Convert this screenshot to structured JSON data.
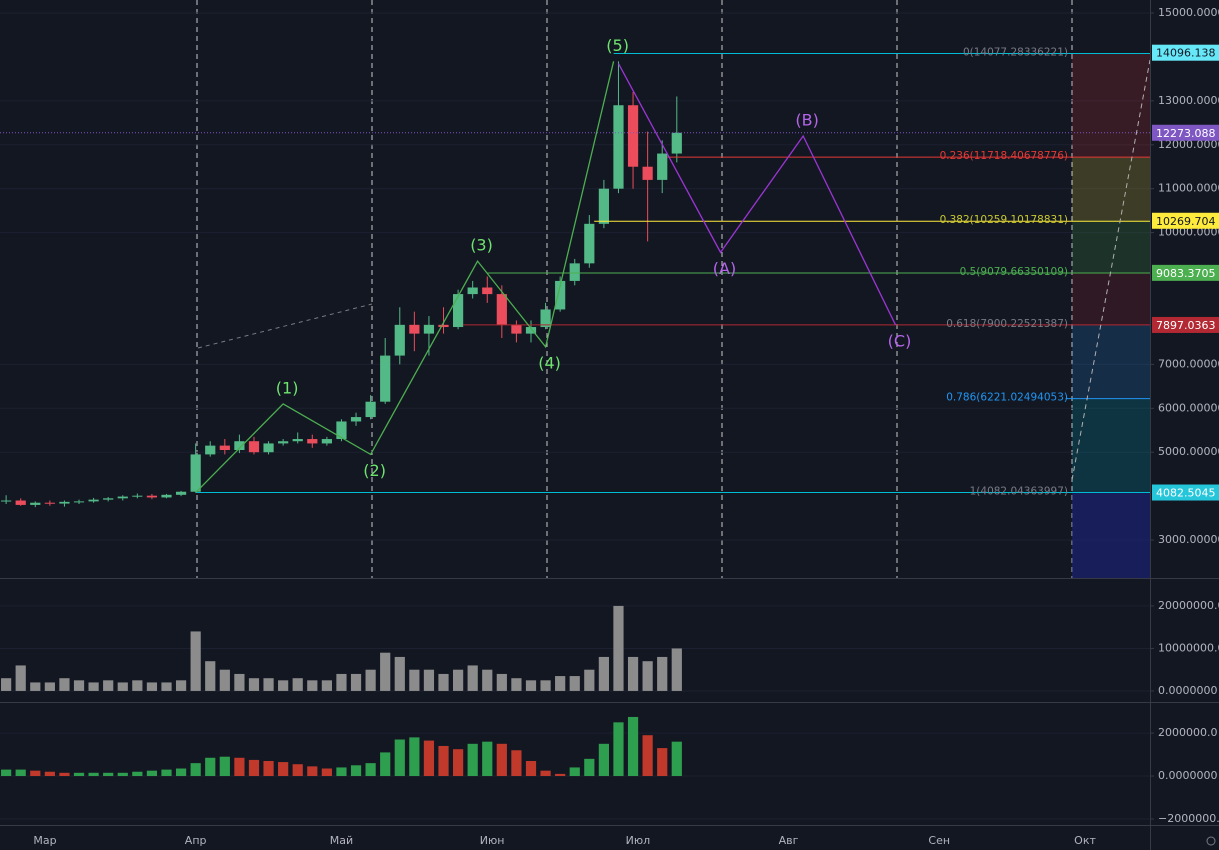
{
  "chart_data": [
    {
      "type": "candlestick",
      "x": [
        -8,
        -5,
        -2,
        1,
        4,
        7,
        10,
        13,
        16,
        19,
        22,
        25,
        28,
        31,
        34,
        37,
        40,
        43,
        46,
        49,
        52,
        55,
        58,
        61,
        64,
        67,
        70,
        73,
        76,
        79,
        82,
        85,
        88,
        91,
        94,
        97,
        100,
        103,
        106,
        109,
        112,
        115,
        118,
        121,
        124,
        127,
        130
      ],
      "open": [
        3880,
        3900,
        3800,
        3850,
        3830,
        3870,
        3880,
        3920,
        3950,
        3990,
        4010,
        3970,
        4030,
        4100,
        4950,
        5150,
        5050,
        5250,
        5000,
        5200,
        5250,
        5300,
        5200,
        5300,
        5700,
        5800,
        6150,
        7200,
        7900,
        7700,
        7900,
        7850,
        8600,
        8750,
        8600,
        7900,
        7700,
        7850,
        8250,
        8900,
        9300,
        10200,
        11000,
        12900,
        11500,
        11200,
        11800
      ],
      "high": [
        4020,
        3950,
        3880,
        3900,
        3900,
        3920,
        3960,
        3980,
        4020,
        4060,
        4050,
        4050,
        4120,
        5200,
        5250,
        5300,
        5400,
        5350,
        5250,
        5300,
        5450,
        5400,
        5350,
        5750,
        5900,
        6300,
        7600,
        8300,
        8200,
        8100,
        8300,
        8700,
        8900,
        9000,
        8800,
        8000,
        8000,
        8400,
        9000,
        9400,
        10400,
        11200,
        13900,
        13200,
        12300,
        12100,
        13100
      ],
      "low": [
        3820,
        3780,
        3750,
        3780,
        3760,
        3820,
        3850,
        3880,
        3900,
        3950,
        3930,
        3950,
        4000,
        4080,
        4900,
        4950,
        4980,
        4950,
        4950,
        5150,
        5200,
        5100,
        5150,
        5250,
        5600,
        5750,
        6100,
        7000,
        7300,
        7200,
        7700,
        7800,
        8500,
        8400,
        7600,
        7500,
        7500,
        7800,
        8200,
        8800,
        9200,
        10100,
        10900,
        11000,
        9800,
        10900,
        11600
      ],
      "close": [
        3900,
        3800,
        3850,
        3830,
        3870,
        3880,
        3920,
        3950,
        3990,
        4010,
        3970,
        4030,
        4100,
        4950,
        5150,
        5050,
        5250,
        5000,
        5200,
        5250,
        5300,
        5200,
        5300,
        5700,
        5800,
        6150,
        7200,
        7900,
        7700,
        7900,
        7850,
        8600,
        8750,
        8600,
        7900,
        7700,
        7850,
        8250,
        8900,
        9300,
        10200,
        11000,
        12900,
        11500,
        11200,
        11800,
        12273
      ],
      "up_color": "#53b987",
      "down_color": "#eb4d5c",
      "xlim": [
        -9.26,
        227.37
      ],
      "ylim": [
        2136,
        15296
      ],
      "xticks": [
        {
          "value": 0,
          "label": "Мар"
        },
        {
          "value": 31,
          "label": "Апр"
        },
        {
          "value": 61,
          "label": "Май"
        },
        {
          "value": 92,
          "label": "Июн"
        },
        {
          "value": 122,
          "label": "Июл"
        },
        {
          "value": 153,
          "label": "Авг"
        },
        {
          "value": 184,
          "label": "Сен"
        },
        {
          "value": 214,
          "label": "Окт"
        }
      ],
      "yticks": [
        {
          "value": 15000,
          "label": "15000.0000"
        },
        {
          "value": 13000,
          "label": "13000.0000"
        },
        {
          "value": 12000,
          "label": "12000.0000"
        },
        {
          "value": 11000,
          "label": "11000.0000"
        },
        {
          "value": 10000,
          "label": "10000.0000"
        },
        {
          "value": 7000,
          "label": "7000.00000"
        },
        {
          "value": 6000,
          "label": "6000.00000"
        },
        {
          "value": 5000,
          "label": "5000.00000"
        },
        {
          "value": 3000,
          "label": "3000.00000"
        }
      ],
      "waves": [
        {
          "color": "#4caf50",
          "label_color": "#6ee46e",
          "x": [
            31,
            49,
            67,
            89,
            103,
            117
          ],
          "values": [
            4082,
            6100,
            4950,
            9350,
            7400,
            13900
          ],
          "labels": [
            null,
            "(1)",
            "(2)",
            "(3)",
            "(4)",
            "(5)"
          ]
        },
        {
          "color": "#9c35d6",
          "label_color": "#b565ea",
          "x": [
            118,
            139,
            156,
            175
          ],
          "values": [
            13850,
            9550,
            12200,
            7900
          ],
          "labels": [
            null,
            "(A)",
            "(B)",
            "(C)"
          ]
        }
      ],
      "fib": [
        {
          "price": 14077.28336221,
          "label": "0(14077.28336221)",
          "color": "#00bcd4",
          "label_color": "#787b86",
          "start": 117
        },
        {
          "price": 11718.40678776,
          "label": "0.236(11718.40678776)",
          "color": "#e53935",
          "label_color": "#e53935",
          "start": 128
        },
        {
          "price": 10259.10178831,
          "label": "0.382(10259.10178831)",
          "color": "#ffeb3b",
          "label_color": "#c8c830",
          "start": 113
        },
        {
          "price": 9079.66350109,
          "label": "0.5(9079.66350109)",
          "color": "#4caf50",
          "label_color": "#4caf50",
          "start": 91
        },
        {
          "price": 7900.22521387,
          "label": "0.618(7900.22521387)",
          "color": "#b22833",
          "label_color": "#787b86",
          "start": 86
        },
        {
          "price": 6221.02494053,
          "label": "0.786(6221.02494053)",
          "color": "#2196f3",
          "label_color": "#2196f3",
          "start": 210
        },
        {
          "price": 4082.04363997,
          "label": "1(4082.04363997)",
          "color": "#00bcd4",
          "label_color": "#787b86",
          "start": 31
        }
      ],
      "box_start": 211.3,
      "last_price": 12273.088,
      "price_tags": [
        {
          "value": 14096.138,
          "color": "#67e8f9",
          "text_color": "#131722"
        },
        {
          "value": 12273.088,
          "color": "#7e57c2",
          "text_color": "#ffffff"
        },
        {
          "value": 10269.704,
          "color": "#ffeb3b",
          "text_color": "#131722"
        },
        {
          "value": 9083.3705,
          "color": "#4caf50",
          "text_color": "#ffffff"
        },
        {
          "value": 7897.0363,
          "color": "#b22833",
          "text_color": "#ffffff"
        },
        {
          "value": 4082.5045,
          "color": "#26c6da",
          "text_color": "#ffffff"
        }
      ]
    },
    {
      "type": "bar",
      "x": [
        -8,
        -5,
        -2,
        1,
        4,
        7,
        10,
        13,
        16,
        19,
        22,
        25,
        28,
        31,
        34,
        37,
        40,
        43,
        46,
        49,
        52,
        55,
        58,
        61,
        64,
        67,
        70,
        73,
        76,
        79,
        82,
        85,
        88,
        91,
        94,
        97,
        100,
        103,
        106,
        109,
        112,
        115,
        118,
        121,
        124,
        127,
        130
      ],
      "values": [
        3000000,
        6000000,
        2000000,
        2000000,
        3000000,
        2500000,
        2000000,
        2500000,
        2000000,
        2500000,
        2000000,
        2000000,
        2500000,
        14000000,
        7000000,
        5000000,
        4000000,
        3000000,
        3000000,
        2500000,
        3000000,
        2500000,
        2500000,
        4000000,
        4000000,
        5000000,
        9000000,
        8000000,
        5000000,
        5000000,
        4000000,
        5000000,
        6000000,
        5000000,
        4000000,
        3000000,
        2500000,
        2500000,
        3500000,
        3500000,
        5000000,
        8000000,
        20000000,
        8000000,
        7000000,
        8000000,
        10000000
      ],
      "color": "#8c8c8c",
      "xlim": [
        -9.26,
        227.37
      ],
      "ylim": [
        -2600000,
        26100000
      ],
      "yticks": [
        {
          "value": 20000000,
          "label": "20000000.0"
        },
        {
          "value": 10000000,
          "label": "10000000.0"
        },
        {
          "value": 0,
          "label": "0.0000000"
        }
      ]
    },
    {
      "type": "bar",
      "x": [
        -8,
        -5,
        -2,
        1,
        4,
        7,
        10,
        13,
        16,
        19,
        22,
        25,
        28,
        31,
        34,
        37,
        40,
        43,
        46,
        49,
        52,
        55,
        58,
        61,
        64,
        67,
        70,
        73,
        76,
        79,
        82,
        85,
        88,
        91,
        94,
        97,
        100,
        103,
        106,
        109,
        112,
        115,
        118,
        121,
        124,
        127,
        130
      ],
      "values": [
        300000,
        300000,
        250000,
        200000,
        150000,
        150000,
        150000,
        150000,
        150000,
        200000,
        250000,
        300000,
        350000,
        600000,
        850000,
        900000,
        850000,
        750000,
        700000,
        650000,
        550000,
        450000,
        350000,
        400000,
        500000,
        600000,
        1100000,
        1700000,
        1800000,
        1650000,
        1400000,
        1250000,
        1500000,
        1600000,
        1500000,
        1200000,
        700000,
        250000,
        100000,
        400000,
        800000,
        1500000,
        2500000,
        2750000,
        1900000,
        1300000,
        1600000
      ],
      "up_color": "#2e9e4f",
      "down_color": "#c0392b",
      "xlim": [
        -9.26,
        227.37
      ],
      "ylim": [
        -2280000,
        3400000
      ],
      "yticks": [
        {
          "value": 2000000,
          "label": "2000000.0"
        },
        {
          "value": 0,
          "label": "0.0000000"
        },
        {
          "value": -2000000,
          "label": "−2000000.0"
        }
      ]
    }
  ]
}
